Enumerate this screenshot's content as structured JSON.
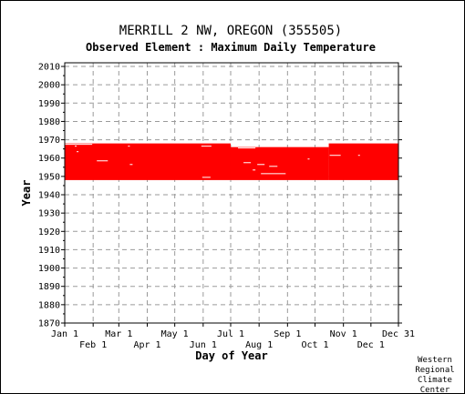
{
  "chart_data": {
    "type": "heatmap",
    "title": "MERRILL 2 NW, OREGON   (355505)",
    "subtitle": "Observed Element : Maximum Daily Temperature",
    "xlabel": "Day of Year",
    "ylabel": "Year",
    "ylim": [
      1870,
      2012
    ],
    "yticks": [
      1870,
      1880,
      1890,
      1900,
      1910,
      1920,
      1930,
      1940,
      1950,
      1960,
      1970,
      1980,
      1990,
      2000,
      2010
    ],
    "xlim": [
      1,
      365
    ],
    "xticks_top_row": [
      {
        "label": "Jan 1",
        "day": 1
      },
      {
        "label": "Mar 1",
        "day": 60
      },
      {
        "label": "May 1",
        "day": 121
      },
      {
        "label": "Jul 1",
        "day": 182
      },
      {
        "label": "Sep 1",
        "day": 244
      },
      {
        "label": "Nov 1",
        "day": 305
      },
      {
        "label": "Dec 31",
        "day": 365
      }
    ],
    "xticks_bottom_row": [
      {
        "label": "Feb 1",
        "day": 32
      },
      {
        "label": "Apr 1",
        "day": 91
      },
      {
        "label": "Jun 1",
        "day": 152
      },
      {
        "label": "Aug 1",
        "day": 213
      },
      {
        "label": "Oct 1",
        "day": 274
      },
      {
        "label": "Dec 1",
        "day": 335
      }
    ],
    "grid": true,
    "series": [
      {
        "observed_color": "#ff0000",
        "year_start": 1948,
        "year_end": 1967,
        "upper_edge_by_period": [
          {
            "day_start": 1,
            "day_end": 181,
            "last_year": 1967
          },
          {
            "day_start": 182,
            "day_end": 288,
            "last_year": 1965
          },
          {
            "day_start": 289,
            "day_end": 365,
            "last_year": 1967
          }
        ],
        "gaps": [
          {
            "year": 1967,
            "day_start": 1,
            "day_end": 30
          },
          {
            "year": 1966,
            "day_start": 12,
            "day_end": 13
          },
          {
            "year": 1966,
            "day_start": 70,
            "day_end": 71
          },
          {
            "year": 1966,
            "day_start": 150,
            "day_end": 160
          },
          {
            "year": 1965,
            "day_start": 190,
            "day_end": 208
          },
          {
            "year": 1961,
            "day_start": 290,
            "day_end": 301
          },
          {
            "year": 1958,
            "day_start": 36,
            "day_end": 47
          },
          {
            "year": 1957,
            "day_start": 196,
            "day_end": 203
          },
          {
            "year": 1956,
            "day_start": 72,
            "day_end": 74
          },
          {
            "year": 1956,
            "day_start": 211,
            "day_end": 218
          },
          {
            "year": 1955,
            "day_start": 224,
            "day_end": 232
          },
          {
            "year": 1953,
            "day_start": 206,
            "day_end": 208
          },
          {
            "year": 1951,
            "day_start": 215,
            "day_end": 241
          },
          {
            "year": 1949,
            "day_start": 151,
            "day_end": 159
          },
          {
            "year": 1961,
            "day_start": 321,
            "day_end": 322
          },
          {
            "year": 1963,
            "day_start": 14,
            "day_end": 15
          },
          {
            "year": 1959,
            "day_start": 266,
            "day_end": 267
          }
        ]
      }
    ]
  },
  "credit": [
    "Western",
    "Regional",
    "Climate",
    "Center"
  ]
}
